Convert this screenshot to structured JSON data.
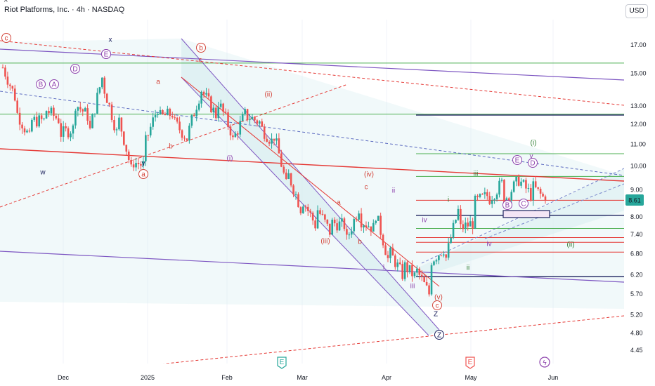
{
  "header": {
    "symbol_title": "Riot Platforms, Inc. · 4h · NASDAQ",
    "collapse_glyph": "^",
    "currency_button": "USD"
  },
  "colors": {
    "up": "#26a69a",
    "down": "#ef5350",
    "green_line": "#4caf50",
    "red_line": "#e53935",
    "purple_line": "#7e57c2",
    "navy_line": "#1a1f5c",
    "wave_purple": "#8e44ad",
    "wave_red": "#d3453a",
    "wave_green": "#2e7d32",
    "channel_fill": "#d8eef0",
    "price_badge": "#26a69a"
  },
  "chart_data": {
    "type": "candlestick",
    "y_scale": "log",
    "ylim": [
      4.2,
      19.0
    ],
    "y_ticks": [
      "17.00",
      "15.00",
      "13.00",
      "12.00",
      "11.00",
      "10.00",
      "9.00",
      "8.00",
      "7.40",
      "6.80",
      "6.20",
      "5.70",
      "5.20",
      "4.80",
      "4.45"
    ],
    "x_ticks": [
      "Dec",
      "2025",
      "Feb",
      "Mar",
      "Apr",
      "May",
      "Jun"
    ],
    "last_price": "8.61",
    "event_markers": [
      "E",
      "E",
      "ϟ"
    ],
    "price_path": [
      [
        15.4,
        16.8
      ],
      [
        12.6,
        13.2
      ],
      [
        12.2,
        11.1
      ],
      [
        12.8,
        12.2
      ],
      [
        11.5,
        12.2
      ],
      [
        13.2,
        11.8
      ],
      [
        11.3,
        12.4
      ],
      [
        14.3,
        14.9
      ],
      [
        12.6,
        11.5
      ],
      [
        10.2,
        9.8
      ],
      [
        11.1,
        10.0
      ],
      [
        12.4,
        13.2
      ],
      [
        12.1,
        12.6
      ],
      [
        11.6,
        11.2
      ],
      [
        13.8,
        14.2
      ],
      [
        13.4,
        12.4
      ],
      [
        11.0,
        11.6
      ],
      [
        12.5,
        12.6
      ],
      [
        11.9,
        12.1
      ],
      [
        11.4,
        11.0
      ],
      [
        9.6,
        8.8
      ],
      [
        8.6,
        8.1
      ],
      [
        8.3,
        7.6
      ],
      [
        7.8,
        7.4
      ],
      [
        7.1,
        7.7
      ],
      [
        7.9,
        8.4
      ],
      [
        8.3,
        7.6
      ],
      [
        6.9,
        6.6
      ],
      [
        6.5,
        6.2
      ],
      [
        6.3,
        6.1
      ],
      [
        6.6,
        5.6
      ],
      [
        6.6,
        7.0
      ],
      [
        7.6,
        8.4
      ],
      [
        8.5,
        7.8
      ],
      [
        8.6,
        8.8
      ],
      [
        8.5,
        9.3
      ],
      [
        9.5,
        9.3
      ],
      [
        9.2,
        8.8
      ],
      [
        9.0,
        8.61
      ]
    ],
    "horizontal_levels": [
      {
        "value": 15.7,
        "color": "green_line"
      },
      {
        "value": 12.55,
        "color": "green_line"
      },
      {
        "value": 12.5,
        "color": "navy_line",
        "from": "Apr"
      },
      {
        "value": 10.55,
        "color": "green_line",
        "from": "Apr"
      },
      {
        "value": 9.55,
        "color": "green_line",
        "from": "Apr"
      },
      {
        "value": 8.6,
        "color": "red_line",
        "from": "Apr"
      },
      {
        "value": 8.05,
        "color": "navy_line",
        "from": "Apr"
      },
      {
        "value": 7.6,
        "color": "green_line",
        "from": "Apr"
      },
      {
        "value": 7.3,
        "color": "red_line",
        "from": "Apr"
      },
      {
        "value": 7.15,
        "color": "red_line",
        "from": "Apr"
      },
      {
        "value": 6.85,
        "color": "red_line",
        "from": "Apr"
      },
      {
        "value": 6.15,
        "color": "navy_line",
        "from": "Apr"
      }
    ],
    "labels": [
      {
        "t": "c",
        "style": "circle",
        "color": "wave_red"
      },
      {
        "t": "X",
        "style": "plain",
        "color": "navy_line"
      },
      {
        "t": "x",
        "style": "plain",
        "color": "navy_line"
      },
      {
        "t": "b",
        "style": "circle",
        "color": "wave_red"
      },
      {
        "t": "c",
        "style": "plain",
        "color": "wave_red"
      },
      {
        "t": "C",
        "style": "circle",
        "color": "wave_purple"
      },
      {
        "t": "E",
        "style": "circle",
        "color": "wave_purple"
      },
      {
        "t": "B",
        "style": "circle",
        "color": "wave_purple"
      },
      {
        "t": "A",
        "style": "circle",
        "color": "wave_purple"
      },
      {
        "t": "D",
        "style": "circle",
        "color": "wave_purple"
      },
      {
        "t": "a",
        "style": "plain",
        "color": "wave_red"
      },
      {
        "t": "(ii)",
        "style": "plain",
        "color": "wave_red"
      },
      {
        "t": "b",
        "style": "plain",
        "color": "wave_red"
      },
      {
        "t": "a",
        "style": "circle",
        "color": "wave_red"
      },
      {
        "t": "y",
        "style": "plain",
        "color": "navy_line"
      },
      {
        "t": "w",
        "style": "plain",
        "color": "navy_line"
      },
      {
        "t": "(i)",
        "style": "plain",
        "color": "wave_purple"
      },
      {
        "t": "(iv)",
        "style": "plain",
        "color": "wave_red"
      },
      {
        "t": "ii",
        "style": "plain",
        "color": "wave_purple"
      },
      {
        "t": "a",
        "style": "plain",
        "color": "wave_red"
      },
      {
        "t": "(iii)",
        "style": "plain",
        "color": "wave_red"
      },
      {
        "t": "b",
        "style": "plain",
        "color": "wave_red"
      },
      {
        "t": "c",
        "style": "plain",
        "color": "wave_red"
      },
      {
        "t": "iv",
        "style": "plain",
        "color": "wave_purple"
      },
      {
        "t": "i",
        "style": "plain",
        "color": "wave_purple"
      },
      {
        "t": "iii",
        "style": "plain",
        "color": "wave_purple"
      },
      {
        "t": "(v)",
        "style": "plain",
        "color": "wave_red"
      },
      {
        "t": "c",
        "style": "circle",
        "color": "wave_red"
      },
      {
        "t": "Z",
        "style": "plain",
        "color": "navy_line"
      },
      {
        "t": "Z",
        "style": "circle",
        "color": "navy_line"
      },
      {
        "t": "iii",
        "style": "plain",
        "color": "wave_green"
      },
      {
        "t": "(i)",
        "style": "plain",
        "color": "wave_green"
      },
      {
        "t": "v",
        "style": "plain",
        "color": "wave_purple"
      },
      {
        "t": "(ii)",
        "style": "plain",
        "color": "wave_green"
      },
      {
        "t": "ii",
        "style": "plain",
        "color": "wave_green"
      },
      {
        "t": "iv",
        "style": "plain",
        "color": "wave_purple"
      },
      {
        "t": "i",
        "style": "plain",
        "color": "wave_green"
      },
      {
        "t": "E",
        "style": "circle",
        "color": "wave_purple"
      },
      {
        "t": "D",
        "style": "circle",
        "color": "wave_purple"
      },
      {
        "t": "C",
        "style": "circle",
        "color": "wave_purple"
      },
      {
        "t": "B",
        "style": "circle",
        "color": "wave_purple"
      },
      {
        "t": "A",
        "style": "circle",
        "color": "wave_purple"
      }
    ]
  }
}
